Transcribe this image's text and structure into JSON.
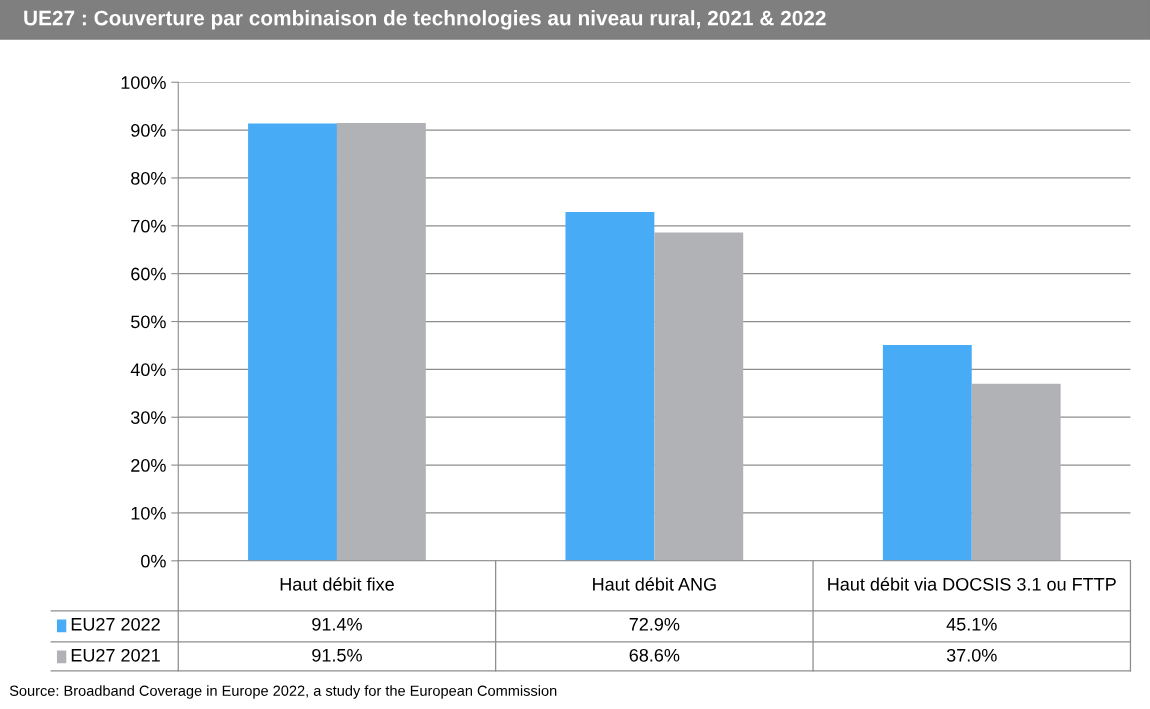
{
  "chart_data": {
    "type": "bar",
    "title": "UE27 : Couverture par combinaison de technologies au niveau rural, 2021 & 2022",
    "categories": [
      "Haut débit fixe",
      "Haut débit ANG",
      "Haut débit via DOCSIS 3.1 ou FTTP"
    ],
    "series": [
      {
        "name": "EU27 2022",
        "color": "#47abf5",
        "values": [
          91.4,
          72.9,
          45.1
        ],
        "value_labels": [
          "91.4%",
          "72.9%",
          "45.1%"
        ]
      },
      {
        "name": "EU27 2021",
        "color": "#b1b2b6",
        "values": [
          91.5,
          68.6,
          37.0
        ],
        "value_labels": [
          "91.5%",
          "68.6%",
          "37.0%"
        ]
      }
    ],
    "ylim": [
      0,
      100
    ],
    "yticks": [
      {
        "value": 0,
        "label": "0%"
      },
      {
        "value": 10,
        "label": "10%"
      },
      {
        "value": 20,
        "label": "20%"
      },
      {
        "value": 30,
        "label": "30%"
      },
      {
        "value": 40,
        "label": "40%"
      },
      {
        "value": 50,
        "label": "50%"
      },
      {
        "value": 60,
        "label": "60%"
      },
      {
        "value": 70,
        "label": "70%"
      },
      {
        "value": 80,
        "label": "80%"
      },
      {
        "value": 90,
        "label": "90%"
      },
      {
        "value": 100,
        "label": "100%"
      }
    ],
    "grid": "y",
    "legend": "bottom",
    "annotations": [
      "Source: Broadband Coverage in Europe 2022, a study for the European Commission"
    ]
  }
}
